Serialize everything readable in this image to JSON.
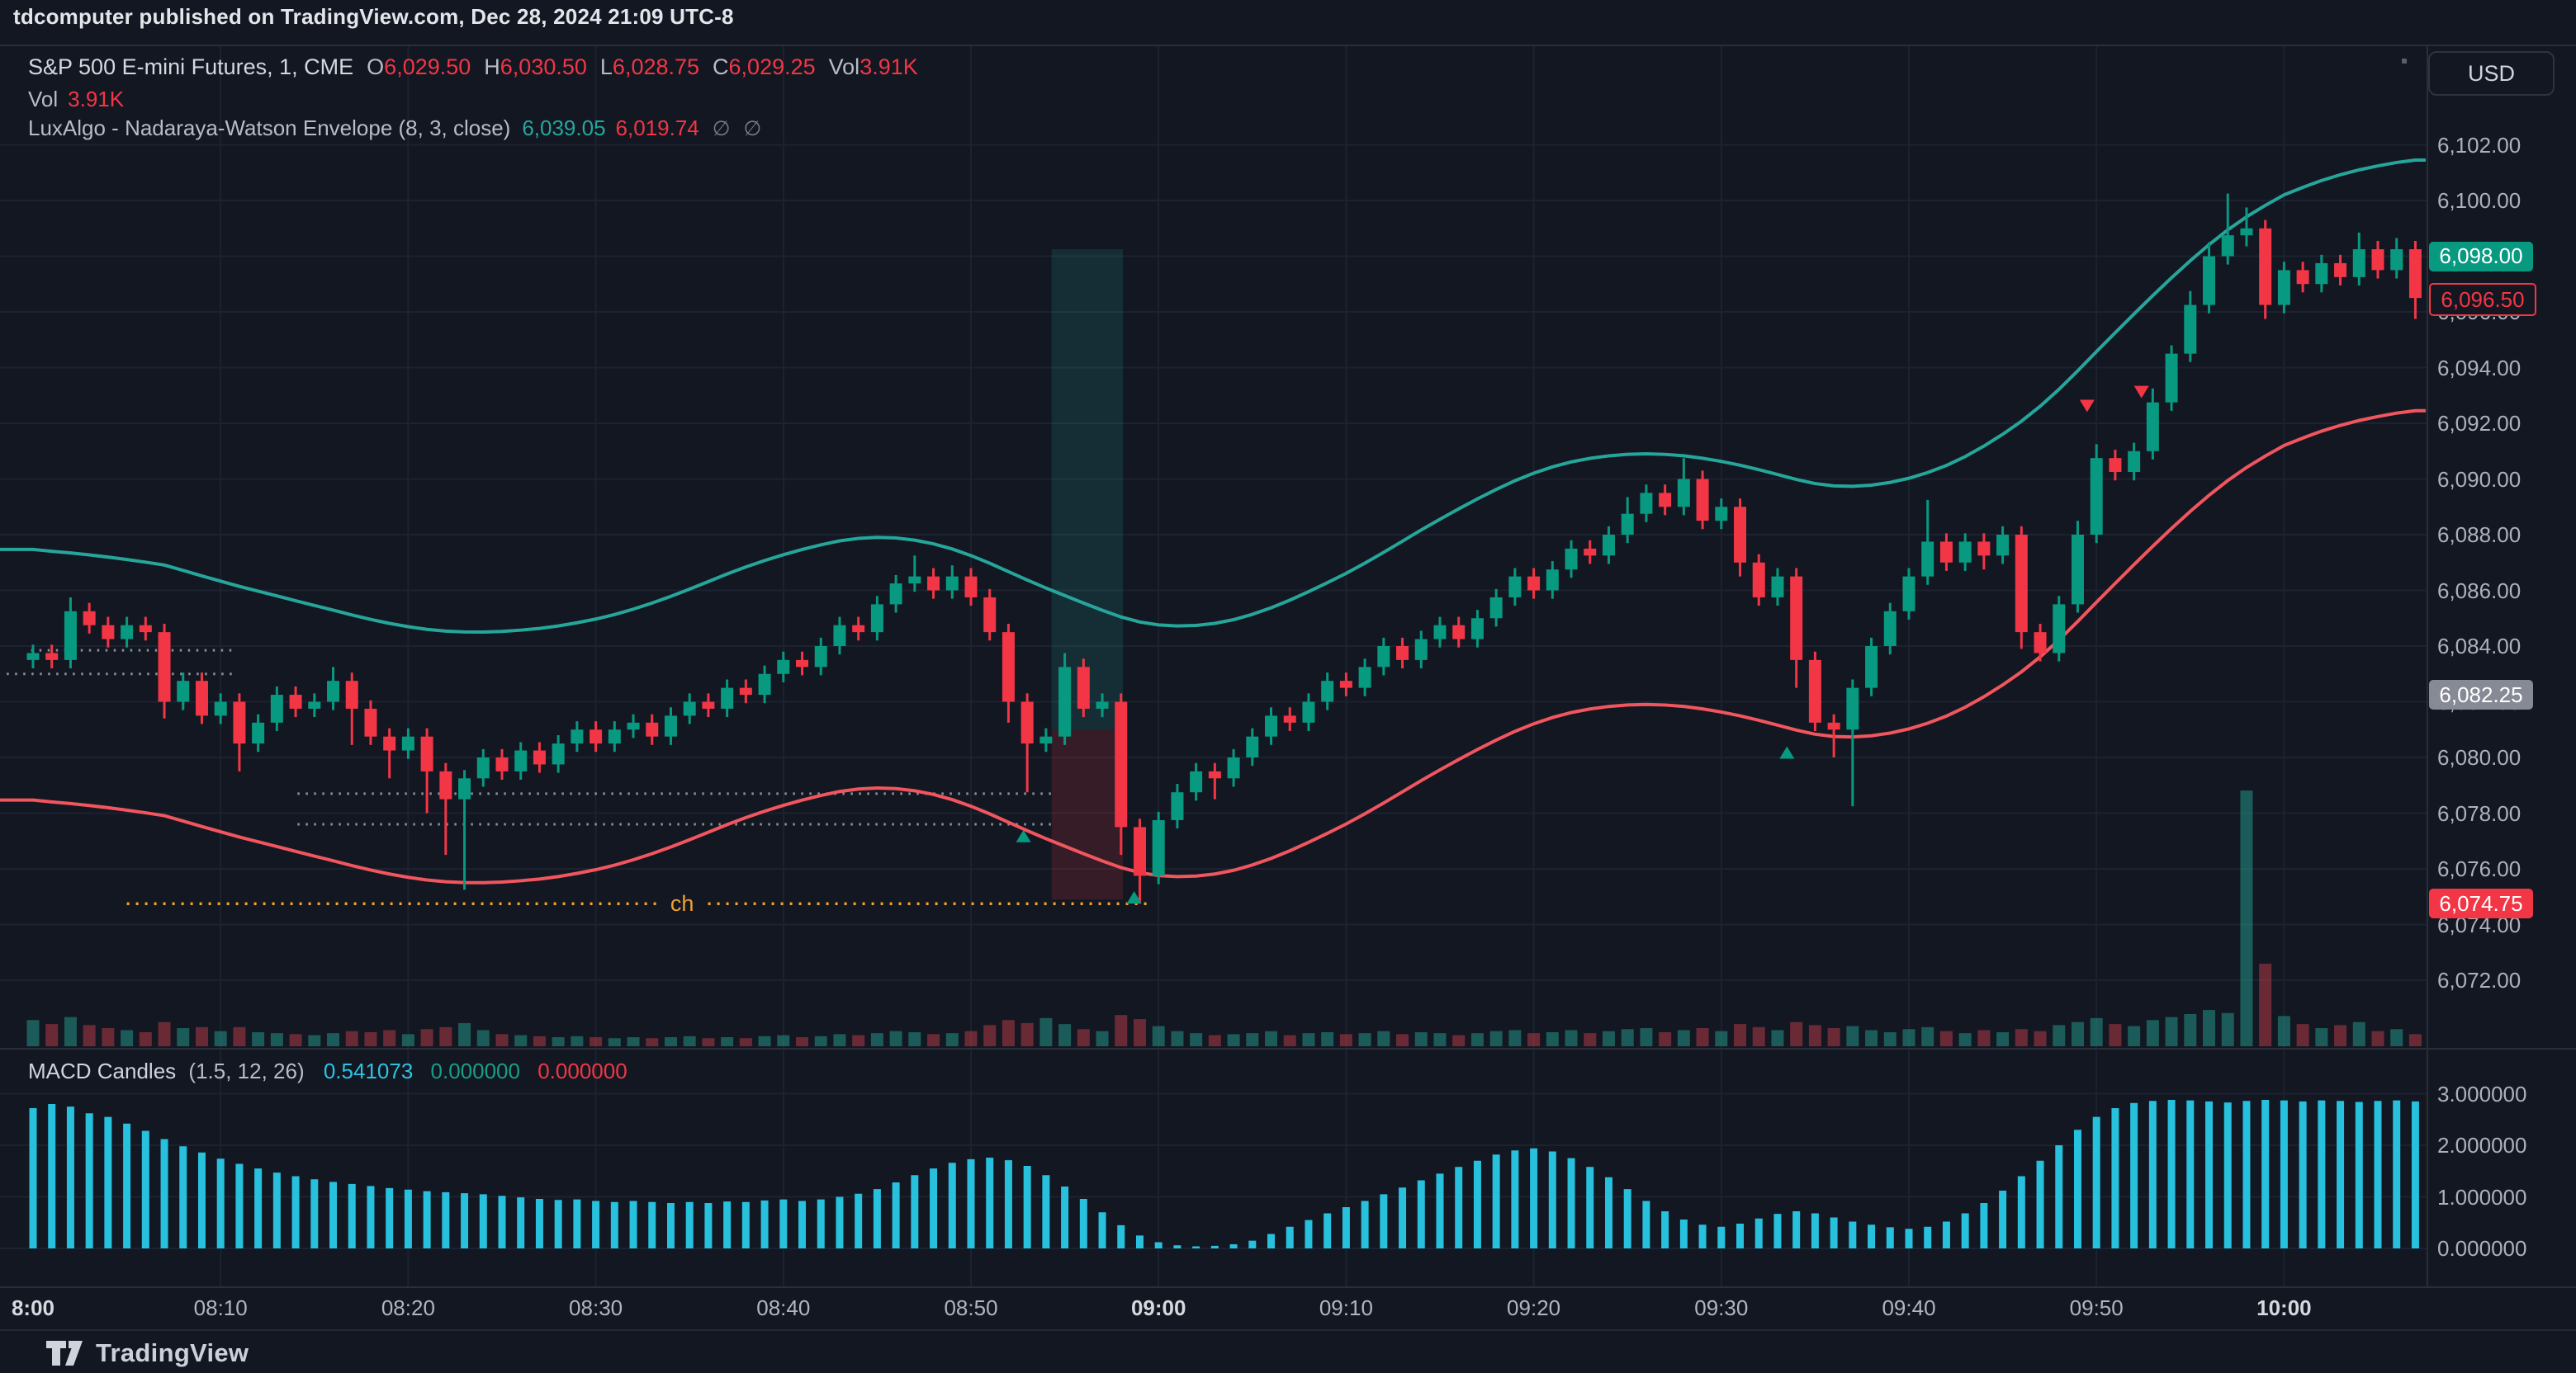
{
  "header": {
    "published_line": "tdcomputer published on TradingView.com, Dec 28, 2024 21:09 UTC-8"
  },
  "toolbar": {
    "currency_label": "USD"
  },
  "footer": {
    "brand": "TradingView"
  },
  "legend": {
    "symbol": "S&P 500 E-mini Futures, 1, CME",
    "ohlc": [
      [
        "O",
        "6,029.50"
      ],
      [
        "H",
        "6,030.50"
      ],
      [
        "L",
        "6,028.75"
      ],
      [
        "C",
        "6,029.25"
      ],
      [
        "Vol",
        "3.91K"
      ]
    ],
    "vol_label": "Vol",
    "vol_value": "3.91K",
    "indicator": "LuxAlgo - Nadaraya-Watson Envelope (8, 3, close)",
    "indicator_upper": "6,039.05",
    "indicator_lower": "6,019.74",
    "disabled_glyph": "∅"
  },
  "macd": {
    "title": "MACD Candles",
    "params": "(1.5, 12, 26)",
    "v1": "0.541073",
    "v2": "0.000000",
    "v3": "0.000000"
  },
  "chart_data": {
    "type": "candlestick+volume+macd",
    "title": "S&P 500 E-mini Futures, 1, CME",
    "timeframe_minutes": 1,
    "session_start": "08:00",
    "x_axis": {
      "ticks": [
        [
          0,
          "8:00",
          1
        ],
        [
          10,
          "08:10",
          0
        ],
        [
          20,
          "08:20",
          0
        ],
        [
          30,
          "08:30",
          0
        ],
        [
          40,
          "08:40",
          0
        ],
        [
          50,
          "08:50",
          0
        ],
        [
          60,
          "09:00",
          1
        ],
        [
          70,
          "09:10",
          0
        ],
        [
          80,
          "09:20",
          0
        ],
        [
          90,
          "09:30",
          0
        ],
        [
          100,
          "09:40",
          0
        ],
        [
          110,
          "09:50",
          0
        ],
        [
          120,
          "10:00",
          1
        ]
      ]
    },
    "y_axis": {
      "min": 6072,
      "max": 6102,
      "tick_step": 2,
      "ticks": [
        [
          6102,
          "6,102.00"
        ],
        [
          6100,
          "6,100.00"
        ],
        [
          6098,
          "6,098.00"
        ],
        [
          6096,
          "6,096.00"
        ],
        [
          6094,
          "6,094.00"
        ],
        [
          6092,
          "6,092.00"
        ],
        [
          6090,
          "6,090.00"
        ],
        [
          6088,
          "6,088.00"
        ],
        [
          6086,
          "6,086.00"
        ],
        [
          6084,
          "6,084.00"
        ],
        [
          6082,
          "6,082.00"
        ],
        [
          6080,
          "6,080.00"
        ],
        [
          6078,
          "6,078.00"
        ],
        [
          6076,
          "6,076.00"
        ],
        [
          6074,
          "6,074.00"
        ],
        [
          6072,
          "6,072.00"
        ]
      ]
    },
    "macd_axis": {
      "ticks": [
        [
          3,
          "3.000000"
        ],
        [
          2,
          "2.000000"
        ],
        [
          1,
          "1.000000"
        ],
        [
          0,
          "0.000000"
        ]
      ]
    },
    "badges": [
      {
        "text": "6,098.00",
        "price": 6098.0,
        "style": "badge-green"
      },
      {
        "text": "6,096.50",
        "price": 6096.5,
        "style": "badge-red-outline"
      },
      {
        "text": "6,082.25",
        "price": 6082.25,
        "style": "badge-gray"
      },
      {
        "text": "6,074.75",
        "price": 6074.75,
        "style": "badge-red"
      }
    ],
    "first_open": 6083.5,
    "closes": [
      6083.75,
      6083.5,
      6085.25,
      6084.75,
      6084.25,
      6084.75,
      6084.5,
      6082,
      6082.75,
      6081.5,
      6082,
      6080.5,
      6081.25,
      6082.25,
      6081.75,
      6082,
      6082.75,
      6081.75,
      6080.75,
      6080.25,
      6080.75,
      6079.5,
      6078.5,
      6079.25,
      6080,
      6079.5,
      6080.25,
      6079.75,
      6080.5,
      6081,
      6080.5,
      6081,
      6081.25,
      6080.75,
      6081.5,
      6082,
      6081.75,
      6082.5,
      6082.25,
      6083,
      6083.5,
      6083.25,
      6084,
      6084.75,
      6084.5,
      6085.5,
      6086.25,
      6086.5,
      6086,
      6086.5,
      6085.75,
      6084.5,
      6082,
      6080.5,
      6080.75,
      6083.25,
      6081.75,
      6082,
      6077.5,
      6075.75,
      6077.75,
      6078.75,
      6079.5,
      6079.25,
      6080,
      6080.75,
      6081.5,
      6081.25,
      6082,
      6082.75,
      6082.5,
      6083.25,
      6084,
      6083.5,
      6084.25,
      6084.75,
      6084.25,
      6085,
      6085.75,
      6086.5,
      6086,
      6086.75,
      6087.5,
      6087.25,
      6088,
      6088.75,
      6089.5,
      6089,
      6090,
      6088.5,
      6089,
      6087,
      6085.75,
      6086.5,
      6083.5,
      6081.25,
      6081,
      6082.5,
      6084,
      6085.25,
      6086.5,
      6087.75,
      6087,
      6087.75,
      6087.25,
      6088,
      6084.5,
      6083.75,
      6085.5,
      6088,
      6090.75,
      6090.25,
      6091,
      6092.75,
      6094.5,
      6096.25,
      6098,
      6098.75,
      6099,
      6096.25,
      6097.5,
      6097,
      6097.75,
      6097.25,
      6098.25,
      6097.5,
      6098.25,
      6096.5
    ],
    "wick_up_default": 0.3,
    "wick_dn_default": 0.3,
    "wick_up_overrides": {
      "2": 0.5,
      "16": 0.5,
      "47": 0.75,
      "49": 0.4,
      "55": 0.5,
      "85": 0.6,
      "88": 0.75,
      "101": 1.5,
      "109": 0.5,
      "110": 0.5,
      "113": 0.5,
      "115": 0.5,
      "116": 0.5,
      "117": 1.5,
      "118": 0.75,
      "124": 0.6,
      "126": 0.4
    },
    "wick_dn_overrides": {
      "7": 0.6,
      "11": 1.0,
      "17": 1.3,
      "19": 1.0,
      "21": 1.5,
      "22": 2.0,
      "23": 3.25,
      "52": 0.75,
      "53": 1.75,
      "58": 1.0,
      "59": 1.0,
      "63": 0.75,
      "91": 0.5,
      "94": 1.0,
      "96": 1.0,
      "97": 2.75,
      "104": 0.5,
      "106": 0.6,
      "118": 0.4,
      "119": 0.5,
      "127": 0.75
    },
    "volumes_k": [
      2.6,
      2.2,
      2.9,
      2.1,
      1.8,
      1.6,
      1.4,
      2.4,
      1.8,
      1.9,
      1.5,
      1.9,
      1.4,
      1.3,
      1.2,
      1.1,
      1.3,
      1.5,
      1.4,
      1.6,
      1.2,
      1.7,
      1.9,
      2.3,
      1.6,
      1.2,
      1.1,
      1.0,
      0.9,
      1.0,
      0.9,
      0.8,
      0.9,
      0.8,
      0.9,
      1.0,
      0.8,
      0.9,
      0.8,
      1.0,
      1.1,
      0.9,
      1.0,
      1.2,
      1.1,
      1.3,
      1.5,
      1.4,
      1.2,
      1.3,
      1.5,
      2.1,
      2.6,
      2.3,
      2.8,
      2.2,
      1.7,
      1.5,
      3.1,
      2.7,
      2.0,
      1.5,
      1.3,
      1.1,
      1.2,
      1.3,
      1.5,
      1.1,
      1.3,
      1.4,
      1.2,
      1.3,
      1.5,
      1.2,
      1.4,
      1.3,
      1.1,
      1.3,
      1.5,
      1.6,
      1.3,
      1.4,
      1.6,
      1.3,
      1.5,
      1.7,
      1.8,
      1.4,
      1.6,
      1.8,
      1.5,
      2.2,
      1.9,
      1.6,
      2.4,
      2.1,
      1.8,
      2.0,
      1.6,
      1.4,
      1.7,
      1.9,
      1.5,
      1.3,
      1.6,
      1.4,
      1.7,
      1.5,
      2.1,
      2.4,
      2.8,
      2.2,
      2.0,
      2.6,
      2.9,
      3.2,
      3.6,
      3.3,
      25.4,
      8.2,
      3.0,
      2.2,
      1.8,
      2.1,
      2.4,
      1.5,
      1.7,
      1.2
    ],
    "macd_values": [
      2.72,
      2.8,
      2.75,
      2.62,
      2.55,
      2.42,
      2.28,
      2.12,
      1.98,
      1.86,
      1.74,
      1.64,
      1.55,
      1.47,
      1.4,
      1.34,
      1.29,
      1.25,
      1.21,
      1.17,
      1.14,
      1.11,
      1.09,
      1.07,
      1.05,
      1.02,
      0.99,
      0.96,
      0.94,
      0.95,
      0.92,
      0.9,
      0.92,
      0.9,
      0.88,
      0.9,
      0.88,
      0.91,
      0.9,
      0.93,
      0.95,
      0.92,
      0.95,
      1.0,
      1.06,
      1.15,
      1.28,
      1.42,
      1.55,
      1.66,
      1.73,
      1.76,
      1.71,
      1.6,
      1.42,
      1.2,
      0.96,
      0.7,
      0.45,
      0.25,
      0.12,
      0.06,
      0.04,
      0.05,
      0.08,
      0.15,
      0.28,
      0.42,
      0.55,
      0.68,
      0.8,
      0.92,
      1.05,
      1.18,
      1.32,
      1.45,
      1.58,
      1.7,
      1.82,
      1.9,
      1.94,
      1.88,
      1.75,
      1.58,
      1.38,
      1.15,
      0.92,
      0.72,
      0.56,
      0.46,
      0.42,
      0.48,
      0.58,
      0.67,
      0.72,
      0.68,
      0.6,
      0.52,
      0.46,
      0.41,
      0.38,
      0.42,
      0.52,
      0.68,
      0.88,
      1.12,
      1.4,
      1.7,
      2.0,
      2.3,
      2.55,
      2.72,
      2.82,
      2.86,
      2.88,
      2.87,
      2.85,
      2.83,
      2.86,
      2.88,
      2.87,
      2.85,
      2.87,
      2.86,
      2.84,
      2.86,
      2.87,
      2.85
    ],
    "envelope": {
      "offset_up": 4.0,
      "offset_down": 5.0,
      "smooth_window": 15,
      "passes": 2
    },
    "band": {
      "start_minute": 54.3,
      "end_minute": 58.1,
      "top_price": 6098.25,
      "mid_price": 6081.0,
      "bottom_price": 6074.9
    },
    "level_lines": {
      "white": [
        {
          "m1": -0.1,
          "m2": 10.8,
          "price": 6083.85
        },
        {
          "m1": -1.4,
          "m2": 10.8,
          "price": 6083.0
        },
        {
          "m1": 14.1,
          "m2": 54.3,
          "price": 6078.7
        },
        {
          "m1": 14.1,
          "m2": 54.3,
          "price": 6077.6
        }
      ],
      "orange": {
        "m1": 5.0,
        "m2": 59.5,
        "price": 6074.75,
        "label": "ch",
        "label_minute": 34.5
      }
    },
    "signals": {
      "buy": [
        {
          "minute": 52.8,
          "price": 6077.4
        },
        {
          "minute": 58.7,
          "price": 6075.2
        },
        {
          "minute": 93.5,
          "price": 6080.4
        }
      ],
      "sell": [
        {
          "minute": 109.5,
          "price": 6092.4
        },
        {
          "minute": 112.4,
          "price": 6092.9
        }
      ]
    },
    "colors": {
      "up": "#089981",
      "down": "#f23645",
      "vol_up": "rgba(34,148,134,0.55)",
      "vol_down": "rgba(178,58,70,0.55)",
      "macd_bar": "#27c0dd",
      "envelope_upper": "#26a69a",
      "envelope_lower": "#f1565f",
      "band_up": "rgba(38,166,154,0.16)",
      "band_down": "rgba(242,54,69,0.16)",
      "orange": "#f0a22e",
      "white_dotted": "rgba(190,196,206,0.7)",
      "grid": "#1d2230",
      "frame": "#2a2e39"
    }
  }
}
